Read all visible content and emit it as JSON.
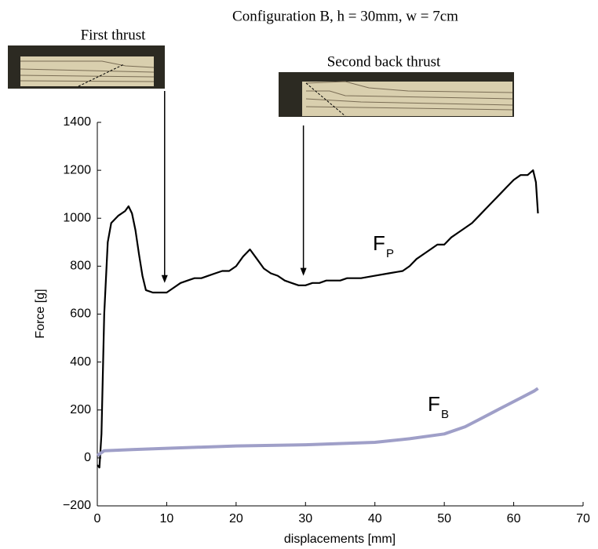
{
  "chart_data": {
    "type": "line",
    "title": "Configuration B, h = 30mm, w = 7cm",
    "xlabel": "displacements [mm]",
    "ylabel": "Force [g]",
    "xlim": [
      0,
      70
    ],
    "xticks": [
      0,
      10,
      20,
      30,
      40,
      50,
      60,
      70
    ],
    "ylim": [
      -200,
      1400
    ],
    "yticks": [
      {
        "value": -200,
        "label": "−200"
      },
      0,
      200,
      400,
      600,
      800,
      1000,
      1200,
      1400
    ],
    "annotations": [
      {
        "text": "First thrust",
        "x": 9.7,
        "y": 730
      },
      {
        "text": "Second back thrust",
        "x": 29.7,
        "y": 760
      }
    ],
    "series": [
      {
        "name": "F",
        "subscript": "P",
        "color": "#000000",
        "x": [
          0,
          0.3,
          0.6,
          1,
          1.5,
          2,
          3,
          4,
          4.5,
          5,
          5.5,
          6,
          6.5,
          7,
          8,
          9,
          10,
          11,
          12,
          13,
          14,
          15,
          16,
          17,
          18,
          19,
          20,
          21,
          22,
          23,
          24,
          25,
          26,
          27,
          28,
          29,
          30,
          31,
          32,
          33,
          34,
          35,
          36,
          38,
          40,
          42,
          44,
          45,
          46,
          47,
          48,
          49,
          50,
          51,
          52,
          53,
          54,
          55,
          56,
          57,
          58,
          59,
          60,
          61,
          62,
          62.8,
          63.2,
          63.5
        ],
        "values": [
          -30,
          -40,
          100,
          600,
          900,
          980,
          1010,
          1030,
          1050,
          1020,
          950,
          850,
          760,
          700,
          690,
          690,
          690,
          710,
          730,
          740,
          750,
          750,
          760,
          770,
          780,
          780,
          800,
          840,
          870,
          830,
          790,
          770,
          760,
          740,
          730,
          720,
          720,
          730,
          730,
          740,
          740,
          740,
          750,
          750,
          760,
          770,
          780,
          800,
          830,
          850,
          870,
          890,
          890,
          920,
          940,
          960,
          980,
          1010,
          1040,
          1070,
          1100,
          1130,
          1160,
          1180,
          1180,
          1200,
          1150,
          1020
        ]
      },
      {
        "name": "F",
        "subscript": "B",
        "color": "#9f9fc8",
        "x": [
          0,
          1,
          5,
          10,
          20,
          30,
          40,
          45,
          50,
          53,
          55,
          57,
          59,
          61,
          63,
          63.5
        ],
        "values": [
          10,
          30,
          35,
          40,
          50,
          55,
          65,
          80,
          100,
          130,
          160,
          190,
          220,
          250,
          280,
          290
        ]
      }
    ]
  }
}
